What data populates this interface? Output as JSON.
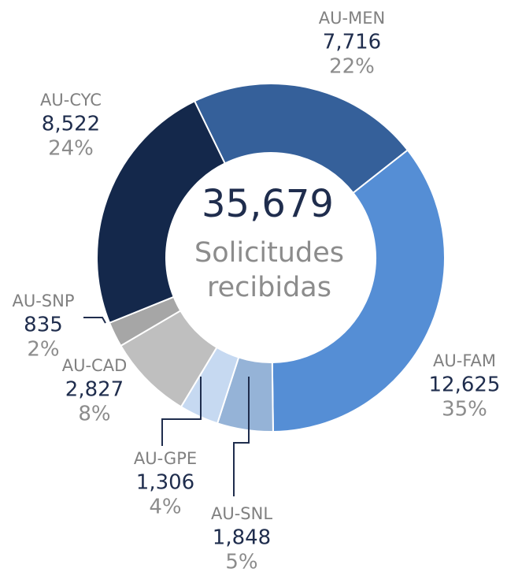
{
  "chart_data": {
    "type": "donut",
    "categories": [
      "AU-MEN",
      "AU-FAM",
      "AU-SNL",
      "AU-GPE",
      "AU-CAD",
      "AU-SNP",
      "AU-CYC"
    ],
    "values": [
      7716,
      12625,
      1848,
      1306,
      2827,
      835,
      8522
    ],
    "value_labels": [
      "7,716",
      "12,625",
      "1,848",
      "1,306",
      "2,827",
      "835",
      "8,522"
    ],
    "percent_labels": [
      "22%",
      "35%",
      "5%",
      "4%",
      "8%",
      "2%",
      "24%"
    ],
    "colors": [
      "#35609a",
      "#558ed5",
      "#95b3d7",
      "#c6d9f1",
      "#bfbfbf",
      "#a6a6a6",
      "#14284b"
    ],
    "center_label": "35,679",
    "center_text": [
      "Solicitudes",
      "recibidas"
    ]
  }
}
